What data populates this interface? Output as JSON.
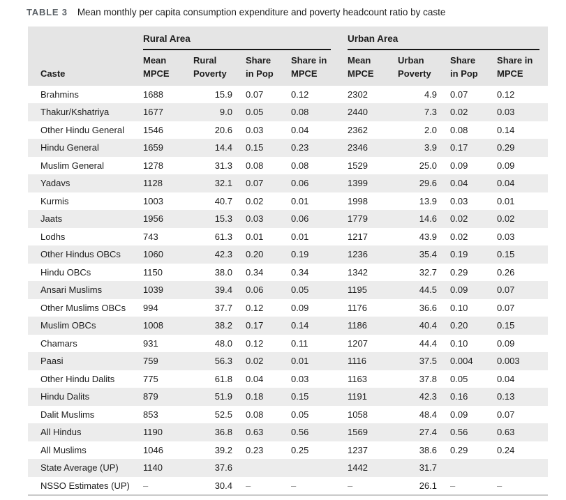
{
  "table_label": "TABLE 3",
  "table_title": "Mean monthly per capita consumption expenditure and poverty headcount ratio by caste",
  "groups": {
    "rural": "Rural Area",
    "urban": "Urban Area"
  },
  "columns": {
    "caste": "Caste",
    "col_headers": [
      {
        "l1": "Mean",
        "l2": "MPCE"
      },
      {
        "l1": "Rural",
        "l2": "Poverty"
      },
      {
        "l1": "Share",
        "l2": "in Pop"
      },
      {
        "l1": "Share in",
        "l2": "MPCE"
      },
      {
        "l1": "Mean",
        "l2": "MPCE"
      },
      {
        "l1": "Urban",
        "l2": "Poverty"
      },
      {
        "l1": "Share",
        "l2": "in Pop"
      },
      {
        "l1": "Share in",
        "l2": "MPCE"
      }
    ]
  },
  "rows": [
    {
      "caste": "Brahmins",
      "values": [
        "1688",
        "15.9",
        "0.07",
        "0.12",
        "2302",
        "4.9",
        "0.07",
        "0.12"
      ]
    },
    {
      "caste": "Thakur/Kshatriya",
      "values": [
        "1677",
        "9.0",
        "0.05",
        "0.08",
        "2440",
        "7.3",
        "0.02",
        "0.03"
      ]
    },
    {
      "caste": "Other Hindu General",
      "values": [
        "1546",
        "20.6",
        "0.03",
        "0.04",
        "2362",
        "2.0",
        "0.08",
        "0.14"
      ]
    },
    {
      "caste": "Hindu General",
      "values": [
        "1659",
        "14.4",
        "0.15",
        "0.23",
        "2346",
        "3.9",
        "0.17",
        "0.29"
      ]
    },
    {
      "caste": "Muslim General",
      "values": [
        "1278",
        "31.3",
        "0.08",
        "0.08",
        "1529",
        "25.0",
        "0.09",
        "0.09"
      ]
    },
    {
      "caste": "Yadavs",
      "values": [
        "1128",
        "32.1",
        "0.07",
        "0.06",
        "1399",
        "29.6",
        "0.04",
        "0.04"
      ]
    },
    {
      "caste": "Kurmis",
      "values": [
        "1003",
        "40.7",
        "0.02",
        "0.01",
        "1998",
        "13.9",
        "0.03",
        "0.01"
      ]
    },
    {
      "caste": "Jaats",
      "values": [
        "1956",
        "15.3",
        "0.03",
        "0.06",
        "1779",
        "14.6",
        "0.02",
        "0.02"
      ]
    },
    {
      "caste": "Lodhs",
      "values": [
        "743",
        "61.3",
        "0.01",
        "0.01",
        "1217",
        "43.9",
        "0.02",
        "0.03"
      ]
    },
    {
      "caste": "Other Hindus OBCs",
      "values": [
        "1060",
        "42.3",
        "0.20",
        "0.19",
        "1236",
        "35.4",
        "0.19",
        "0.15"
      ]
    },
    {
      "caste": "Hindu OBCs",
      "values": [
        "1150",
        "38.0",
        "0.34",
        "0.34",
        "1342",
        "32.7",
        "0.29",
        "0.26"
      ]
    },
    {
      "caste": "Ansari Muslims",
      "values": [
        "1039",
        "39.4",
        "0.06",
        "0.05",
        "1195",
        "44.5",
        "0.09",
        "0.07"
      ]
    },
    {
      "caste": "Other Muslims OBCs",
      "values": [
        "994",
        "37.7",
        "0.12",
        "0.09",
        "1176",
        "36.6",
        "0.10",
        "0.07"
      ]
    },
    {
      "caste": "Muslim OBCs",
      "values": [
        "1008",
        "38.2",
        "0.17",
        "0.14",
        "1186",
        "40.4",
        "0.20",
        "0.15"
      ]
    },
    {
      "caste": "Chamars",
      "values": [
        "931",
        "48.0",
        "0.12",
        "0.11",
        "1207",
        "44.4",
        "0.10",
        "0.09"
      ]
    },
    {
      "caste": "Paasi",
      "values": [
        "759",
        "56.3",
        "0.02",
        "0.01",
        "1116",
        "37.5",
        "0.004",
        "0.003"
      ]
    },
    {
      "caste": "Other Hindu Dalits",
      "values": [
        "775",
        "61.8",
        "0.04",
        "0.03",
        "1163",
        "37.8",
        "0.05",
        "0.04"
      ]
    },
    {
      "caste": "Hindu Dalits",
      "values": [
        "879",
        "51.9",
        "0.18",
        "0.15",
        "1191",
        "42.3",
        "0.16",
        "0.13"
      ]
    },
    {
      "caste": "Dalit Muslims",
      "values": [
        "853",
        "52.5",
        "0.08",
        "0.05",
        "1058",
        "48.4",
        "0.09",
        "0.07"
      ]
    },
    {
      "caste": "All Hindus",
      "values": [
        "1190",
        "36.8",
        "0.63",
        "0.56",
        "1569",
        "27.4",
        "0.56",
        "0.63"
      ]
    },
    {
      "caste": "All Muslims",
      "values": [
        "1046",
        "39.2",
        "0.23",
        "0.25",
        "1237",
        "38.6",
        "0.29",
        "0.24"
      ]
    },
    {
      "caste": "State Average (UP)",
      "values": [
        "1140",
        "37.6",
        "",
        "",
        "1442",
        "31.7",
        "",
        ""
      ]
    },
    {
      "caste": "NSSO Estimates (UP)",
      "values": [
        "–",
        "30.4",
        "–",
        "–",
        "–",
        "26.1",
        "–",
        "–"
      ]
    }
  ],
  "colors": {
    "header_bg": "#e5e5e5",
    "stripe_bg": "#ececec",
    "group_rule": "#161616",
    "bottom_rule": "#c9c9c9",
    "label_color": "#5a6066",
    "muted_dash": "#8d8d8d"
  }
}
